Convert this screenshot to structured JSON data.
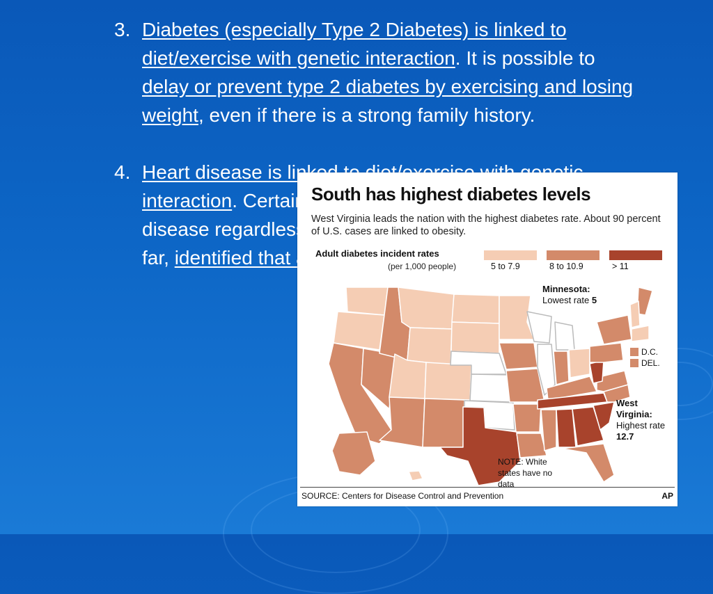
{
  "slide": {
    "item3": {
      "number": "3.",
      "link1": "Diabetes (especially Type 2 Diabetes) is linked to diet/exercise with genetic interaction",
      "text1": ".  It is possible to ",
      "link2": "delay or prevent type 2 diabetes by exercising and losing weight",
      "text2": ", even if there is a strong family history."
    },
    "item4": {
      "number": "4.",
      "link1": "Heart disease is linked to diet/exercise with genetic interaction",
      "text1": ". Certain genetic combinations result in heart disease regardless of diet, health choices, exercise.  So far, ",
      "link2": "identified that account for some heart health."
    }
  },
  "map": {
    "title": "South has highest diabetes levels",
    "subtitle": "West Virginia leads the nation with the highest diabetes rate. About 90 percent of U.S. cases are linked to obesity.",
    "legend_title": "Adult diabetes incident rates",
    "legend_unit": "(per 1,000 people)",
    "legend": [
      {
        "label": "5 to 7.9",
        "color": "#f5cdb4"
      },
      {
        "label": "8 to 10.9",
        "color": "#d38a6a"
      },
      {
        "label": "> 11",
        "color": "#a8432c"
      }
    ],
    "minnesota_label": "Minnesota:",
    "minnesota_text": "Lowest rate",
    "minnesota_value": "5",
    "wv_label": "West Virginia:",
    "wv_text": "Highest rate",
    "wv_value": "12.7",
    "dc_label": "D.C.",
    "del_label": "DEL.",
    "note": "NOTE: White states have no data",
    "source": "SOURCE: Centers for Disease Control and Prevention",
    "credit": "AP"
  }
}
